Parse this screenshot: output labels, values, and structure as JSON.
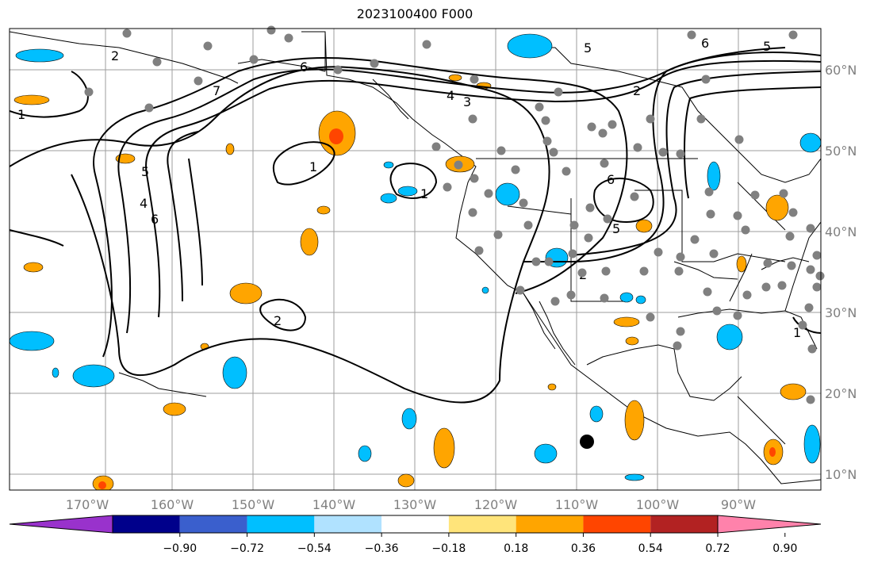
{
  "title": "2023100400 F000",
  "map": {
    "lon_labels": [
      "170°W",
      "160°W",
      "150°W",
      "140°W",
      "130°W",
      "120°W",
      "110°W",
      "100°W",
      "90°W"
    ],
    "lat_labels": [
      "60°N",
      "50°N",
      "40°N",
      "30°N",
      "20°N",
      "10°N"
    ],
    "contour_labels": [
      "1",
      "2",
      "3",
      "4",
      "5",
      "6",
      "7"
    ],
    "gridline_color": "#9e9e9e",
    "coast_color": "#000000",
    "station_color": "#808080",
    "marker_color": "#000000"
  },
  "colorbar": {
    "ticks": [
      "−0.90",
      "−0.72",
      "−0.54",
      "−0.36",
      "−0.18",
      "0.18",
      "0.36",
      "0.54",
      "0.72",
      "0.90"
    ],
    "colors": [
      "#9932cc",
      "#00008b",
      "#3a5fcd",
      "#00bfff",
      "#b0e2ff",
      "#ffffff",
      "#ffe47a",
      "#ffa500",
      "#ff4500",
      "#b22222",
      "#ff82ab"
    ]
  },
  "palette": {
    "neg_strong": "#00bfff",
    "neg_weak": "#b0e2ff",
    "pos_weak": "#ffe47a",
    "pos_mid": "#ffa500",
    "pos_strong": "#ff4500"
  }
}
